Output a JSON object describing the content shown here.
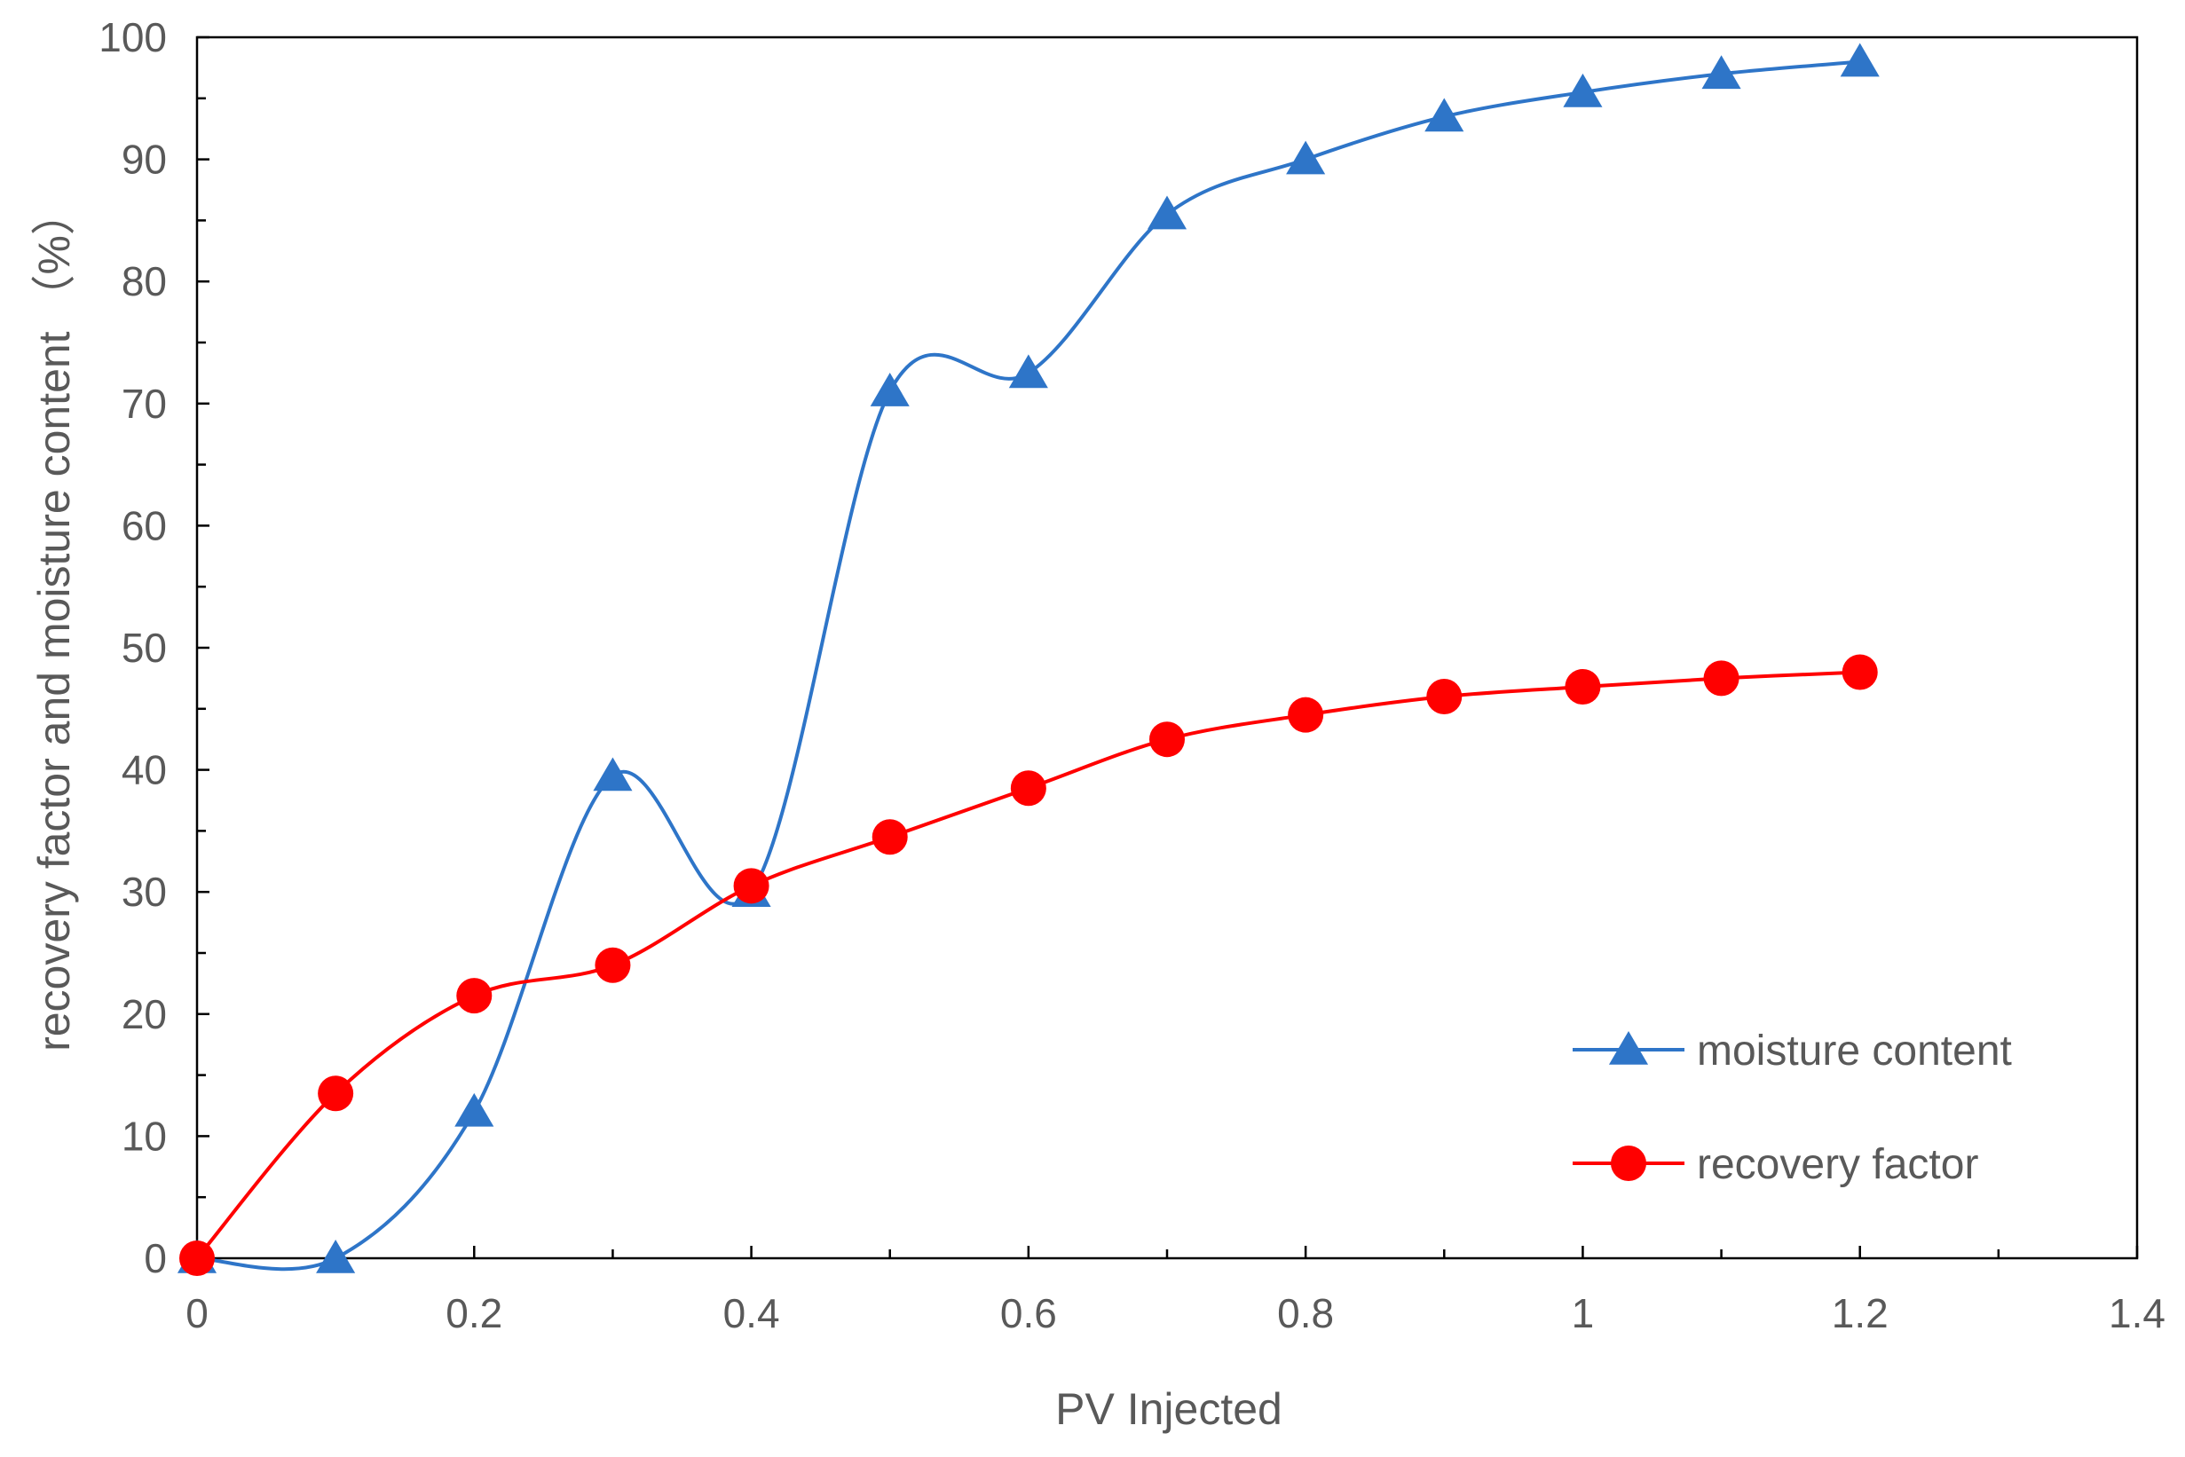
{
  "chart_data": {
    "type": "line",
    "title": "",
    "xlabel": "PV Injected",
    "ylabel": "recovery factor and moisture content （%）",
    "xlim": [
      0,
      1.4
    ],
    "ylim": [
      0,
      100
    ],
    "x_ticks": [
      "0",
      "0.2",
      "0.4",
      "0.6",
      "0.8",
      "1",
      "1.2",
      "1.4"
    ],
    "y_ticks": [
      "0",
      "10",
      "20",
      "30",
      "40",
      "50",
      "60",
      "70",
      "80",
      "90",
      "100"
    ],
    "grid": false,
    "legend_position": "lower-right",
    "series": [
      {
        "name": "moisture content",
        "color": "#2E75C8",
        "marker": "triangle",
        "smooth": true,
        "x": [
          0,
          0.1,
          0.2,
          0.3,
          0.4,
          0.5,
          0.6,
          0.7,
          0.8,
          0.9,
          1.0,
          1.1,
          1.2
        ],
        "values": [
          0,
          0,
          12,
          39.5,
          30,
          71,
          72.5,
          85.5,
          90,
          93.5,
          95.5,
          97,
          98
        ]
      },
      {
        "name": "recovery factor",
        "color": "#FF0000",
        "marker": "circle",
        "smooth": true,
        "x": [
          0,
          0.1,
          0.2,
          0.3,
          0.4,
          0.5,
          0.6,
          0.7,
          0.8,
          0.9,
          1.0,
          1.1,
          1.2
        ],
        "values": [
          0,
          13.5,
          21.5,
          24,
          30.5,
          34.5,
          38.5,
          42.5,
          44.5,
          46,
          46.8,
          47.5,
          48
        ]
      }
    ]
  }
}
